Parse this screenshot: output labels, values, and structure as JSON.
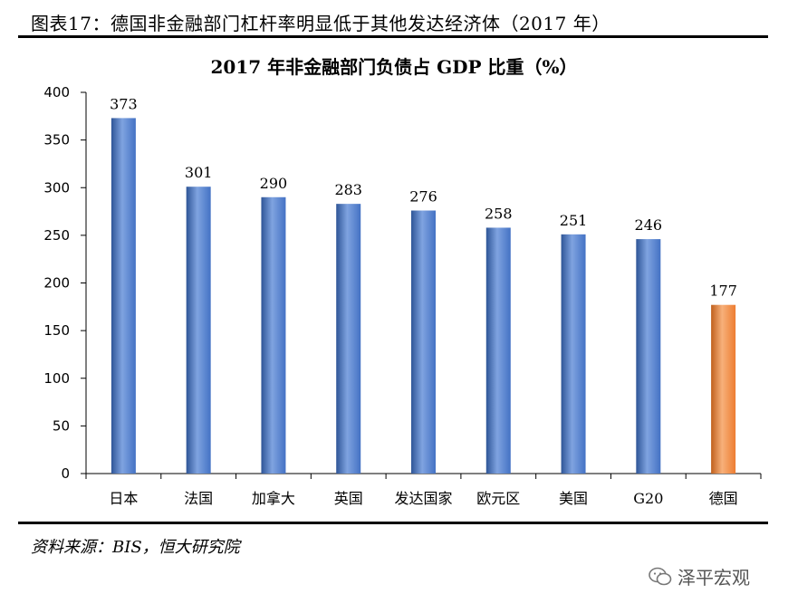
{
  "caption": "图表17：德国非金融部门杠杆率明显低于其他发达经济体（2017 年）",
  "source": "资料来源：BIS，恒大研究院",
  "watermark": "泽平宏观",
  "chart_data": {
    "type": "bar",
    "title": "2017 年非金融部门负债占 GDP 比重（%）",
    "categories": [
      "日本",
      "法国",
      "加拿大",
      "英国",
      "发达国家",
      "欧元区",
      "美国",
      "G20",
      "德国"
    ],
    "values": [
      373,
      301,
      290,
      283,
      276,
      258,
      251,
      246,
      177
    ],
    "ylim": [
      0,
      400
    ],
    "yticks": [
      0,
      50,
      100,
      150,
      200,
      250,
      300,
      350,
      400
    ],
    "xlabel": "",
    "ylabel": "",
    "grid": false,
    "legend": "none",
    "colors": {
      "default_bar": "#4472C4",
      "default_bar_dark": "#2E5597",
      "default_bar_light": "#7FA3E0",
      "highlight_bar": "#ED7D31",
      "highlight_bar_dark": "#C0601C",
      "highlight_bar_light": "#F7B07A",
      "highlight_category": "德国"
    }
  }
}
